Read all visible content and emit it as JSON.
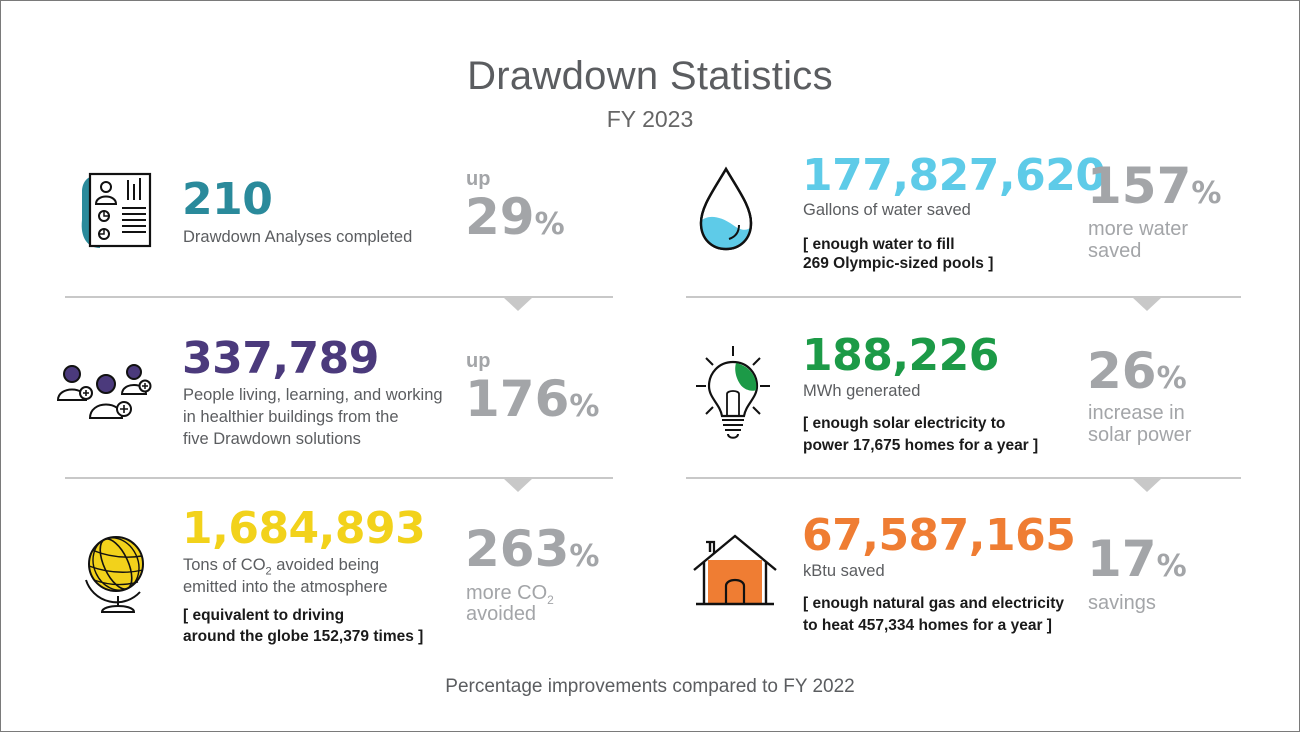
{
  "header": {
    "title": "Drawdown Statistics",
    "subtitle": "FY 2023"
  },
  "footer": "Percentage improvements compared to FY 2022",
  "colors": {
    "teal": "#2a8a9b",
    "purple": "#4b3a7c",
    "yellow": "#f2d21b",
    "cyan": "#5ecbe8",
    "green": "#1c9a47",
    "orange": "#ef7d33",
    "gray": "#a3a5a8"
  },
  "stats": {
    "analyses": {
      "value": "210",
      "label": "Drawdown Analyses completed",
      "pct_prefix": "up",
      "pct": "29",
      "pct_symbol": "%",
      "icon": "report-document-icon"
    },
    "people": {
      "value": "337,789",
      "label_lines": [
        "People living, learning, and working",
        "in healthier buildings from the",
        "five Drawdown solutions"
      ],
      "pct_prefix": "up",
      "pct": "176",
      "pct_symbol": "%",
      "icon": "people-group-icon"
    },
    "co2": {
      "value": "1,684,893",
      "label_line1_pre": "Tons of CO",
      "label_line1_sub": "2",
      "label_line1_post": " avoided being",
      "label_line2": "emitted into the atmosphere",
      "note_lines": [
        "[ equivalent to driving",
        "around the globe 152,379 times ]"
      ],
      "pct": "263",
      "pct_symbol": "%",
      "pct_sub_line1_pre": "more CO",
      "pct_sub_line1_sub": "2",
      "pct_sub_line2": "avoided",
      "icon": "globe-icon"
    },
    "water": {
      "value": "177,827,620",
      "label": "Gallons of water saved",
      "note_lines": [
        "[ enough water to fill",
        "269 Olympic-sized pools ]"
      ],
      "pct": "157",
      "pct_symbol": "%",
      "pct_sub_lines": [
        "more water",
        "saved"
      ],
      "icon": "water-drop-icon"
    },
    "solar": {
      "value": "188,226",
      "label": "MWh generated",
      "note_lines": [
        "[ enough solar electricity to",
        "power 17,675 homes for a year ]"
      ],
      "pct": "26",
      "pct_symbol": "%",
      "pct_sub_lines": [
        "increase in",
        "solar power"
      ],
      "icon": "light-bulb-icon"
    },
    "energy": {
      "value": "67,587,165",
      "label": "kBtu saved",
      "note_lines": [
        "[ enough natural gas and electricity",
        "to heat 457,334 homes for a year ]"
      ],
      "pct": "17",
      "pct_symbol": "%",
      "pct_sub_lines": [
        "savings"
      ],
      "icon": "house-icon"
    }
  }
}
